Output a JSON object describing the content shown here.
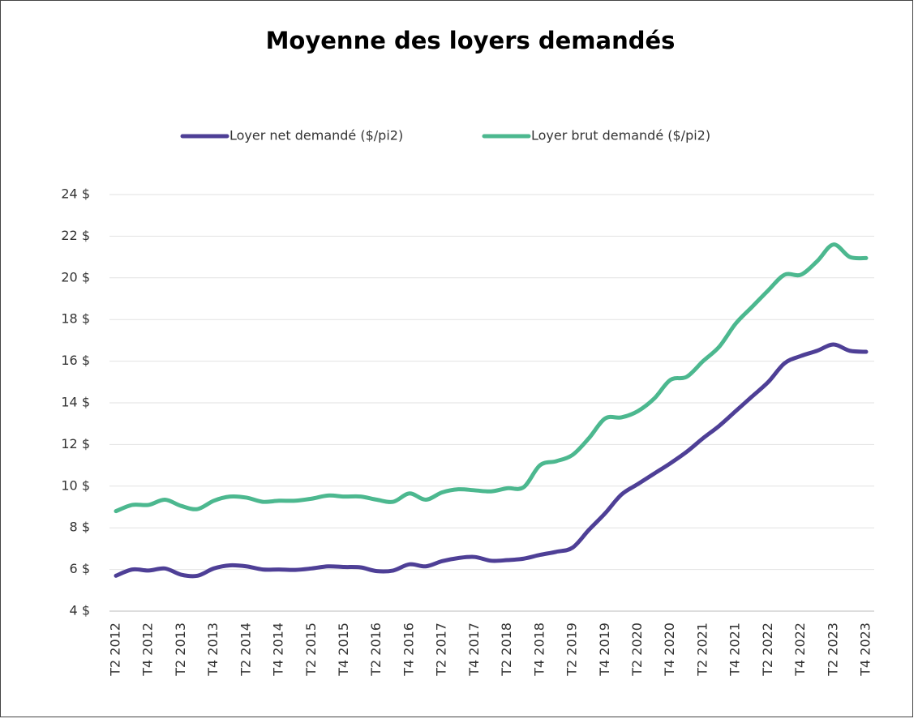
{
  "chart_data": {
    "type": "line",
    "title": "Moyenne des loyers demandés",
    "categories": [
      "T2 2012",
      null,
      "T4 2012",
      null,
      "T2 2013",
      null,
      "T4 2013",
      null,
      "T2 2014",
      null,
      "T4 2014",
      null,
      "T2 2015",
      null,
      "T4 2015",
      null,
      "T2 2016",
      null,
      "T4 2016",
      null,
      "T2 2017",
      null,
      "T4 2017",
      null,
      "T2 2018",
      null,
      "T4 2018",
      null,
      "T2 2019",
      null,
      "T4 2019",
      null,
      "T2 2020",
      null,
      "T4 2020",
      null,
      "T2 2021",
      null,
      "T4 2021",
      null,
      "T2 2022",
      null,
      "T4 2022",
      null,
      "T2 2023",
      null,
      "T4 2023"
    ],
    "series": [
      {
        "name": "Loyer net demandé ($/pi2)",
        "color": "#4e3f96",
        "values": [
          5.7,
          6.0,
          5.95,
          6.05,
          5.75,
          5.7,
          6.05,
          6.2,
          6.15,
          6.0,
          6.0,
          5.98,
          6.05,
          6.15,
          6.12,
          6.1,
          5.92,
          5.95,
          6.25,
          6.15,
          6.4,
          6.55,
          6.6,
          6.42,
          6.45,
          6.52,
          6.7,
          6.85,
          7.05,
          7.9,
          8.7,
          9.6,
          10.1,
          10.6,
          11.1,
          11.65,
          12.3,
          12.9,
          13.6,
          14.3,
          15.0,
          15.9,
          16.25,
          16.5,
          16.8,
          16.5,
          16.45
        ]
      },
      {
        "name": "Loyer brut demandé ($/pi2)",
        "color": "#4cb88f",
        "values": [
          8.8,
          9.1,
          9.1,
          9.35,
          9.05,
          8.9,
          9.3,
          9.5,
          9.45,
          9.25,
          9.3,
          9.3,
          9.4,
          9.55,
          9.5,
          9.5,
          9.35,
          9.25,
          9.65,
          9.35,
          9.7,
          9.85,
          9.8,
          9.75,
          9.9,
          9.95,
          11.0,
          11.2,
          11.5,
          12.3,
          13.25,
          13.3,
          13.6,
          14.2,
          15.1,
          15.25,
          16.0,
          16.7,
          17.8,
          18.6,
          19.4,
          20.15,
          20.15,
          20.8,
          21.6,
          21.0,
          20.95
        ]
      }
    ],
    "ylim": [
      4,
      24
    ],
    "yticks": [
      {
        "value": 4,
        "label": "4 $"
      },
      {
        "value": 6,
        "label": "6 $"
      },
      {
        "value": 8,
        "label": "8 $"
      },
      {
        "value": 10,
        "label": "10 $"
      },
      {
        "value": 12,
        "label": "12 $"
      },
      {
        "value": 14,
        "label": "14 $"
      },
      {
        "value": 16,
        "label": "16 $"
      },
      {
        "value": 18,
        "label": "18 $"
      },
      {
        "value": 20,
        "label": "20 $"
      },
      {
        "value": 22,
        "label": "22 $"
      },
      {
        "value": 24,
        "label": "24 $"
      }
    ],
    "grid": true,
    "legend": "top"
  }
}
